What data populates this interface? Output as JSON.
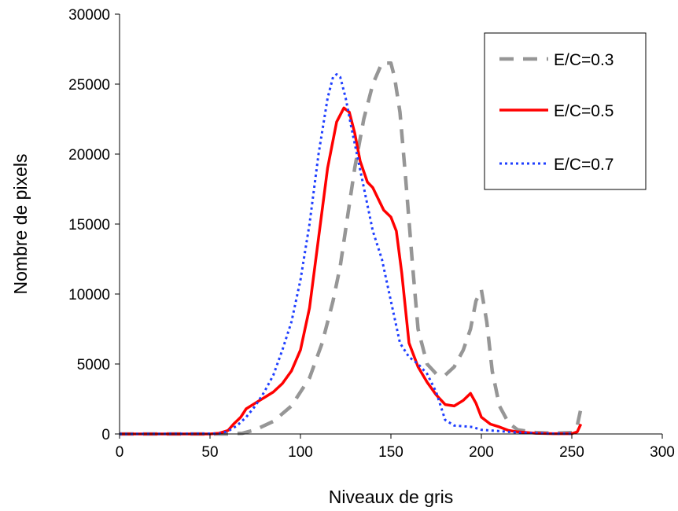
{
  "chart_data": {
    "type": "line",
    "title": "",
    "xlabel": "Niveaux de gris",
    "ylabel": "Nombre de pixels",
    "xlim": [
      0,
      300
    ],
    "ylim": [
      0,
      30000
    ],
    "xticks": [
      0,
      50,
      100,
      150,
      200,
      250,
      300
    ],
    "yticks": [
      0,
      5000,
      10000,
      15000,
      20000,
      25000,
      30000
    ],
    "xtick_labels": [
      "0",
      "50",
      "100",
      "150",
      "200",
      "250",
      "300"
    ],
    "ytick_labels": [
      "0",
      "5000",
      "10000",
      "15000",
      "20000",
      "25000",
      "30000"
    ],
    "grid": false,
    "legend_position": "top-right",
    "series": [
      {
        "name": "E/C=0.3",
        "color": "#969696",
        "style": "dashed",
        "x": [
          0,
          60,
          68,
          75,
          85,
          95,
          105,
          112,
          118,
          122,
          126,
          130,
          135,
          140,
          145,
          148,
          150,
          152,
          155,
          158,
          162,
          165,
          170,
          175,
          180,
          185,
          190,
          194,
          197,
          200,
          203,
          206,
          210,
          215,
          220,
          230,
          240,
          250,
          253,
          255
        ],
        "y": [
          0,
          0,
          50,
          300,
          900,
          2000,
          4000,
          6500,
          9500,
          12000,
          15500,
          19000,
          22500,
          25000,
          26500,
          26500,
          26500,
          25500,
          23000,
          18500,
          12000,
          7500,
          5000,
          4300,
          4200,
          4800,
          6000,
          7500,
          9500,
          10300,
          8000,
          4500,
          2000,
          800,
          300,
          100,
          50,
          100,
          600,
          1800
        ]
      },
      {
        "name": "E/C=0.5",
        "color": "#ff0000",
        "style": "solid",
        "x": [
          0,
          50,
          55,
          60,
          63,
          67,
          70,
          75,
          80,
          85,
          90,
          95,
          100,
          105,
          110,
          115,
          120,
          124,
          127,
          130,
          133,
          137,
          140,
          143,
          146,
          150,
          153,
          156,
          160,
          165,
          170,
          175,
          180,
          185,
          190,
          194,
          197,
          200,
          205,
          210,
          215,
          220,
          230,
          240,
          250,
          253,
          255
        ],
        "y": [
          0,
          0,
          50,
          250,
          700,
          1200,
          1800,
          2200,
          2600,
          3000,
          3600,
          4500,
          6000,
          9000,
          14000,
          19000,
          22300,
          23300,
          23000,
          21500,
          19500,
          18000,
          17600,
          16800,
          16000,
          15500,
          14500,
          11500,
          6500,
          4800,
          3700,
          2800,
          2100,
          2000,
          2400,
          2900,
          2200,
          1200,
          700,
          500,
          250,
          150,
          50,
          20,
          20,
          150,
          700
        ]
      },
      {
        "name": "E/C=0.7",
        "color": "#1f3fff",
        "style": "dotted",
        "x": [
          0,
          55,
          60,
          65,
          70,
          75,
          80,
          85,
          90,
          95,
          100,
          105,
          110,
          115,
          118,
          120,
          122,
          125,
          128,
          132,
          136,
          140,
          145,
          150,
          155,
          160,
          165,
          170,
          175,
          180,
          185,
          190,
          195,
          200,
          210,
          220,
          230,
          240,
          250
        ],
        "y": [
          0,
          20,
          200,
          600,
          1200,
          2000,
          3000,
          4200,
          6000,
          8000,
          11000,
          15000,
          20000,
          24000,
          25500,
          25700,
          25500,
          24000,
          22000,
          19500,
          17000,
          14500,
          12500,
          9500,
          6500,
          5500,
          5000,
          4300,
          3000,
          1000,
          600,
          550,
          500,
          300,
          200,
          100,
          50,
          20,
          20
        ]
      }
    ]
  }
}
